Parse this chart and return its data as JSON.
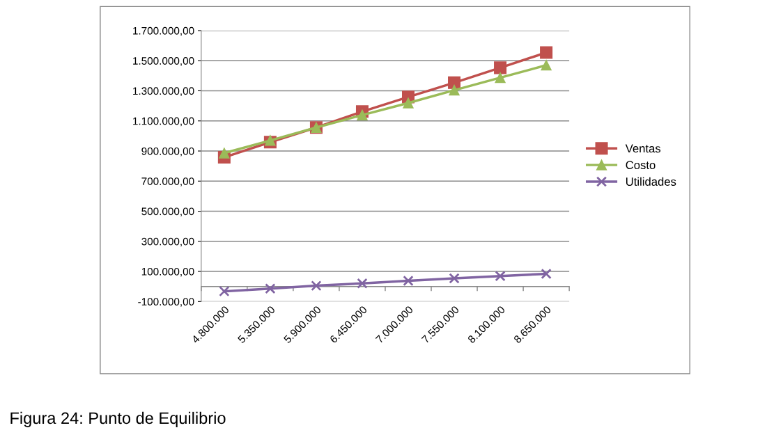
{
  "chart_data": {
    "type": "line",
    "categories": [
      "4.800.000",
      "5.350.000",
      "5.900.000",
      "6.450.000",
      "7.000.000",
      "7.550.000",
      "8.100.000",
      "8.650.000"
    ],
    "series": [
      {
        "name": "Ventas",
        "color": "#c0504d",
        "marker": "square",
        "values": [
          858000,
          959000,
          1056000,
          1162000,
          1259000,
          1354000,
          1453000,
          1554000
        ]
      },
      {
        "name": "Costo",
        "color": "#9bbb59",
        "marker": "triangle",
        "values": [
          886000,
          970000,
          1056000,
          1139000,
          1219000,
          1304000,
          1387000,
          1470000
        ]
      },
      {
        "name": "Utilidades",
        "color": "#8064a2",
        "marker": "cross",
        "values": [
          -32000,
          -14000,
          5000,
          21000,
          38000,
          54000,
          69000,
          84000
        ]
      }
    ],
    "ylim": [
      -100000,
      1700000
    ],
    "yticks": [
      {
        "value": -100000,
        "label": "-100.000,00"
      },
      {
        "value": 100000,
        "label": "100.000,00"
      },
      {
        "value": 300000,
        "label": "300.000,00"
      },
      {
        "value": 500000,
        "label": "500.000,00"
      },
      {
        "value": 700000,
        "label": "700.000,00"
      },
      {
        "value": 900000,
        "label": "900.000,00"
      },
      {
        "value": 1100000,
        "label": "1.100.000,00"
      },
      {
        "value": 1300000,
        "label": "1.300.000,00"
      },
      {
        "value": 1500000,
        "label": "1.500.000,00"
      },
      {
        "value": 1700000,
        "label": "1.700.000,00"
      }
    ],
    "grid": "y",
    "legend": "right",
    "annotations": [
      "Figura 24: Punto de Equilibrio"
    ]
  }
}
